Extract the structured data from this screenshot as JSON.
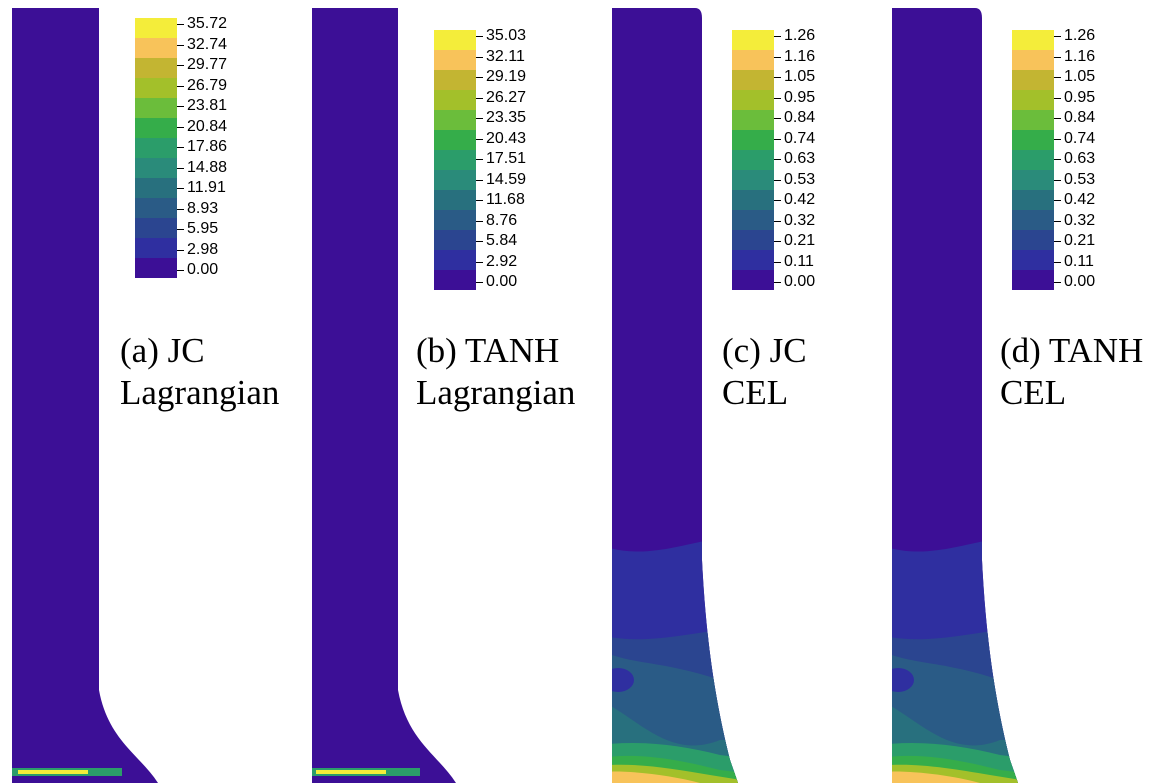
{
  "panels": [
    {
      "id": "a",
      "caption_line1": "(a) JC",
      "caption_line2": "Lagrangian",
      "legend": [
        "35.72",
        "32.74",
        "29.77",
        "26.79",
        "23.81",
        "20.84",
        "17.86",
        "14.88",
        "11.91",
        "8.93",
        "5.95",
        "2.98",
        "0.00"
      ]
    },
    {
      "id": "b",
      "caption_line1": "(b) TANH",
      "caption_line2": "Lagrangian",
      "legend": [
        "35.03",
        "32.11",
        "29.19",
        "26.27",
        "23.35",
        "20.43",
        "17.51",
        "14.59",
        "11.68",
        "8.76",
        "5.84",
        "2.92",
        "0.00"
      ]
    },
    {
      "id": "c",
      "caption_line1": "(c) JC",
      "caption_line2": "CEL",
      "legend": [
        "1.26",
        "1.16",
        "1.05",
        "0.95",
        "0.84",
        "0.74",
        "0.63",
        "0.53",
        "0.42",
        "0.32",
        "0.21",
        "0.11",
        "0.00"
      ]
    },
    {
      "id": "d",
      "caption_line1": "(d) TANH",
      "caption_line2": "CEL",
      "legend": [
        "1.26",
        "1.16",
        "1.05",
        "0.95",
        "0.84",
        "0.74",
        "0.63",
        "0.53",
        "0.42",
        "0.32",
        "0.21",
        "0.11",
        "0.00"
      ]
    }
  ],
  "colormap": [
    "#f4ed3a",
    "#f8c35a",
    "#c3b532",
    "#a3c02a",
    "#6bbd3b",
    "#35ad4a",
    "#2b9d6a",
    "#2a8b7a",
    "#28707e",
    "#2a5b86",
    "#2b4590",
    "#2f2fa0",
    "#3c0f96"
  ]
}
